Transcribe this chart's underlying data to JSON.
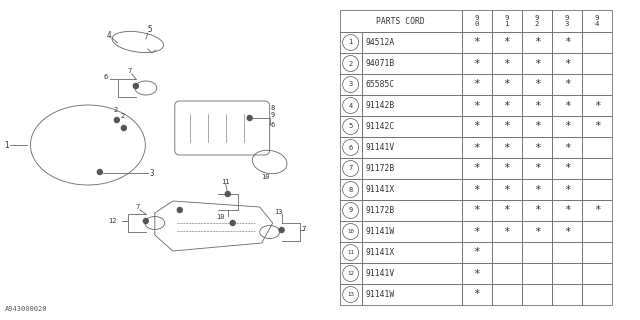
{
  "watermark": "A943000020",
  "bg_color": "#ffffff",
  "ec": "#666666",
  "table": {
    "rows": [
      {
        "num": 1,
        "code": "94512A",
        "marks": [
          1,
          1,
          1,
          1,
          0
        ]
      },
      {
        "num": 2,
        "code": "94071B",
        "marks": [
          1,
          1,
          1,
          1,
          0
        ]
      },
      {
        "num": 3,
        "code": "65585C",
        "marks": [
          1,
          1,
          1,
          1,
          0
        ]
      },
      {
        "num": 4,
        "code": "91142B",
        "marks": [
          1,
          1,
          1,
          1,
          1
        ]
      },
      {
        "num": 5,
        "code": "91142C",
        "marks": [
          1,
          1,
          1,
          1,
          1
        ]
      },
      {
        "num": 6,
        "code": "91141V",
        "marks": [
          1,
          1,
          1,
          1,
          0
        ]
      },
      {
        "num": 7,
        "code": "91172B",
        "marks": [
          1,
          1,
          1,
          1,
          0
        ]
      },
      {
        "num": 8,
        "code": "91141X",
        "marks": [
          1,
          1,
          1,
          1,
          0
        ]
      },
      {
        "num": 9,
        "code": "91172B",
        "marks": [
          1,
          1,
          1,
          1,
          1
        ]
      },
      {
        "num": 10,
        "code": "91141W",
        "marks": [
          1,
          1,
          1,
          1,
          0
        ]
      },
      {
        "num": 11,
        "code": "91141X",
        "marks": [
          1,
          0,
          0,
          0,
          0
        ]
      },
      {
        "num": 12,
        "code": "91141V",
        "marks": [
          1,
          0,
          0,
          0,
          0
        ]
      },
      {
        "num": 13,
        "code": "91141W",
        "marks": [
          1,
          0,
          0,
          0,
          0
        ]
      }
    ],
    "year_labels": [
      "9\n0",
      "9\n1",
      "9\n2",
      "9\n3",
      "9\n4"
    ]
  }
}
